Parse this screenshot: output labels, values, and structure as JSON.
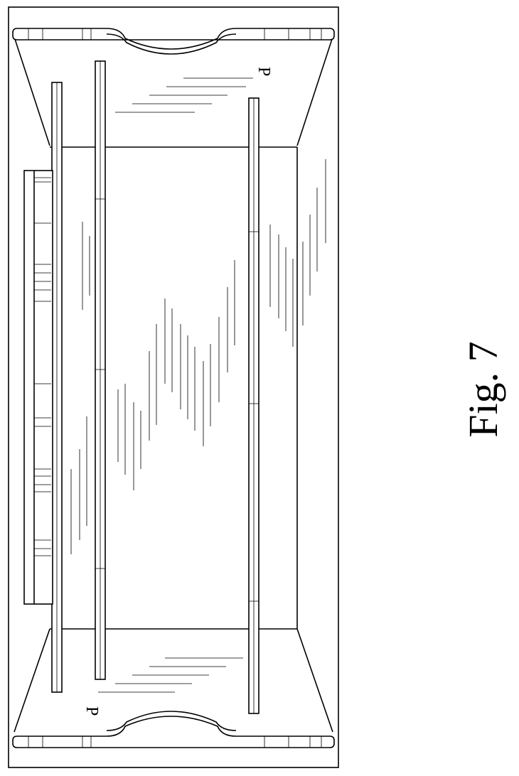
{
  "figure": {
    "label": "Fig. 7"
  },
  "diagram": {
    "panel_marks": [
      "P",
      "P"
    ]
  }
}
